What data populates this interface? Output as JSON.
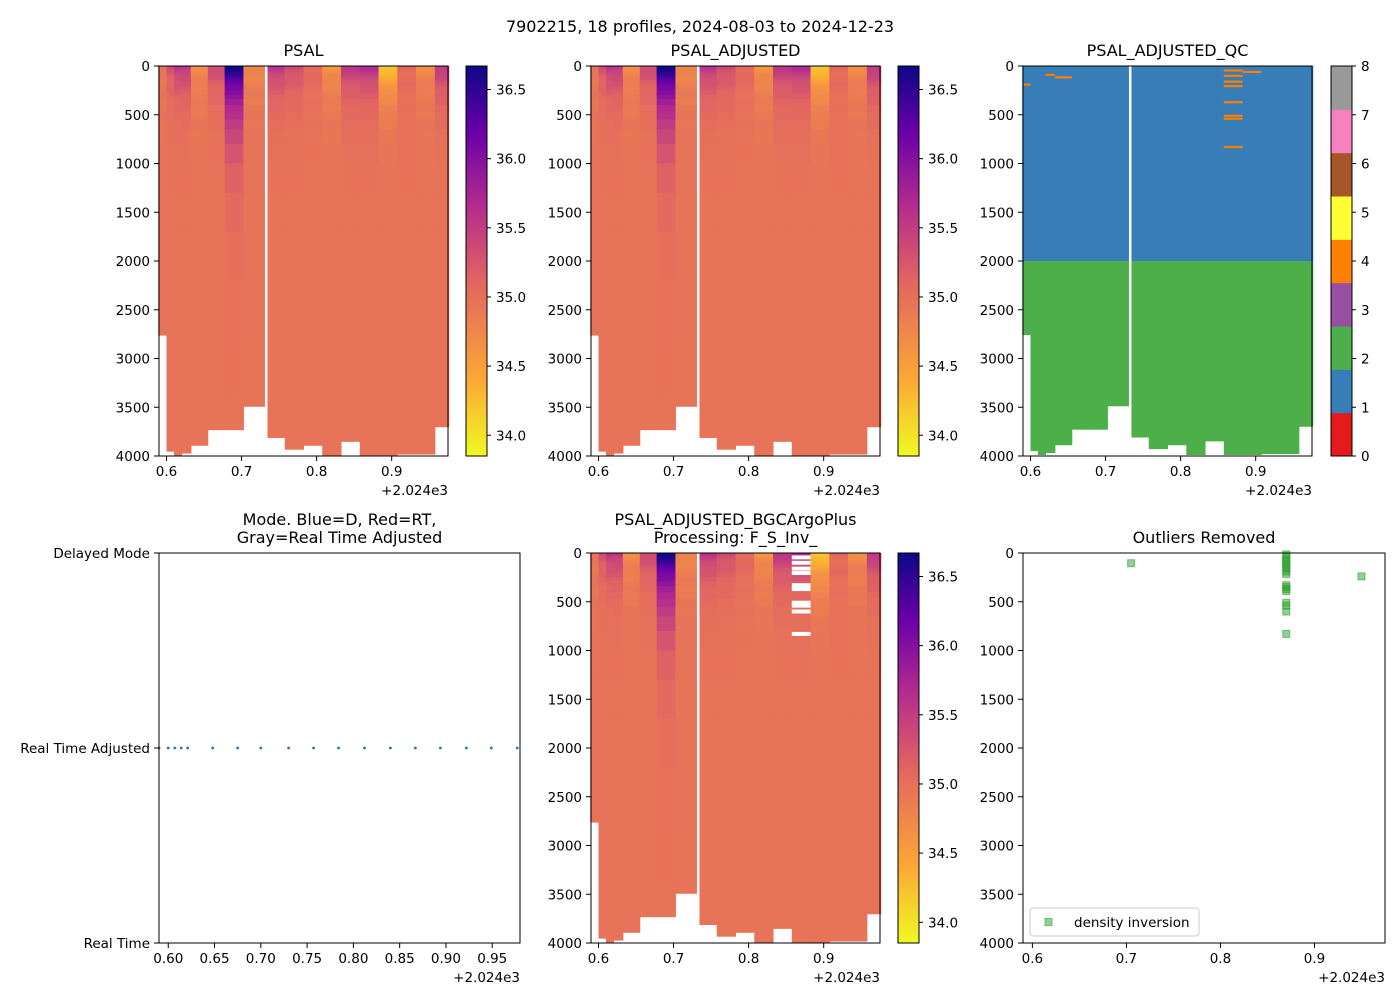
{
  "suptitle": "7902215, 18 profiles, 2024-08-03 to 2024-12-23",
  "colors": {
    "salinity_scale": [
      "#f0f921",
      "#fca636",
      "#e16462",
      "#b12a90",
      "#6a00a8",
      "#0d0887"
    ],
    "qc": [
      "#e41a1c",
      "#377eb8",
      "#4daf4a",
      "#984ea3",
      "#ff7f00",
      "#ffff33",
      "#a65628",
      "#f781bf",
      "#999999"
    ],
    "marker": "#2ca02c",
    "mode_dot": "#1f77b4"
  },
  "chart_data": [
    {
      "id": "psal",
      "type": "heatmap",
      "title": "PSAL",
      "xlim": [
        0.59,
        0.975
      ],
      "x_ticks": [
        "0.6",
        "0.7",
        "0.8",
        "0.9"
      ],
      "x_offset": "+2.024e3",
      "ylim": [
        4000,
        0
      ],
      "y_ticks": [
        "0",
        "500",
        "1000",
        "1500",
        "2000",
        "2500",
        "3000",
        "3500",
        "4000"
      ],
      "colorbar": {
        "range": [
          33.85,
          36.67
        ],
        "ticks": [
          "34.0",
          "34.5",
          "35.0",
          "35.5",
          "36.0",
          "36.5"
        ]
      },
      "profile_times": [
        0.595,
        0.605,
        0.615,
        0.625,
        0.64,
        0.67,
        0.685,
        0.72,
        0.745,
        0.77,
        0.795,
        0.82,
        0.845,
        0.87,
        0.895,
        0.92,
        0.945,
        0.97
      ],
      "profile_max_depths": [
        2760,
        3950,
        3990,
        3970,
        3890,
        3730,
        3730,
        3490,
        3810,
        3930,
        3890,
        3990,
        3850,
        3990,
        3990,
        3980,
        3980,
        3700
      ],
      "surface_salinity": [
        34.9,
        35.3,
        35.6,
        35.6,
        34.7,
        35.4,
        36.7,
        34.7,
        35.6,
        35.4,
        35.1,
        34.6,
        35.6,
        35.7,
        34.1,
        35.1,
        34.7,
        35.6
      ]
    },
    {
      "id": "psal_adj",
      "type": "heatmap",
      "title": "PSAL_ADJUSTED",
      "xlim": [
        0.59,
        0.975
      ],
      "x_ticks": [
        "0.6",
        "0.7",
        "0.8",
        "0.9"
      ],
      "x_offset": "+2.024e3",
      "ylim": [
        4000,
        0
      ],
      "y_ticks": [
        "0",
        "500",
        "1000",
        "1500",
        "2000",
        "2500",
        "3000",
        "3500",
        "4000"
      ],
      "colorbar": {
        "range": [
          33.85,
          36.67
        ],
        "ticks": [
          "34.0",
          "34.5",
          "35.0",
          "35.5",
          "36.0",
          "36.5"
        ]
      }
    },
    {
      "id": "psal_adj_qc",
      "type": "heatmap",
      "title": "PSAL_ADJUSTED_QC",
      "xlim": [
        0.59,
        0.975
      ],
      "x_ticks": [
        "0.6",
        "0.7",
        "0.8",
        "0.9"
      ],
      "x_offset": "+2.024e3",
      "ylim": [
        4000,
        0
      ],
      "y_ticks": [
        "0",
        "500",
        "1000",
        "1500",
        "2000",
        "2500",
        "3000",
        "3500",
        "4000"
      ],
      "qc_split_depth": 2000,
      "qc_above": 1,
      "qc_below": 2,
      "qc_flag4_marks": [
        {
          "time": 0.6,
          "depth": 190
        },
        {
          "time": 0.625,
          "depth": 90
        },
        {
          "time": 0.645,
          "depth": 115
        },
        {
          "time": 0.87,
          "depth": 45
        },
        {
          "time": 0.87,
          "depth": 100
        },
        {
          "time": 0.87,
          "depth": 160
        },
        {
          "time": 0.87,
          "depth": 205
        },
        {
          "time": 0.87,
          "depth": 370
        },
        {
          "time": 0.87,
          "depth": 510
        },
        {
          "time": 0.87,
          "depth": 540
        },
        {
          "time": 0.87,
          "depth": 830
        },
        {
          "time": 0.895,
          "depth": 60
        }
      ],
      "colorbar": {
        "range": [
          0,
          8
        ],
        "ticks": [
          "0",
          "1",
          "2",
          "3",
          "4",
          "5",
          "6",
          "7",
          "8"
        ]
      }
    },
    {
      "id": "mode",
      "type": "scatter",
      "title": "Mode. Blue=D, Red=RT,",
      "title2": "Gray=Real Time Adjusted",
      "xlim": [
        0.59,
        0.98
      ],
      "x_ticks": [
        "0.60",
        "0.65",
        "0.70",
        "0.75",
        "0.80",
        "0.85",
        "0.90",
        "0.95"
      ],
      "x_offset": "+2.024e3",
      "y_categories": [
        "Real Time",
        "Real Time Adjusted",
        "Delayed Mode"
      ],
      "points_x": [
        0.59,
        0.6,
        0.607,
        0.614,
        0.621,
        0.648,
        0.675,
        0.7,
        0.73,
        0.757,
        0.784,
        0.812,
        0.84,
        0.867,
        0.894,
        0.922,
        0.949,
        0.977
      ],
      "points_category": "Real Time Adjusted"
    },
    {
      "id": "bgc",
      "type": "heatmap",
      "title": "PSAL_ADJUSTED_BGCArgoPlus",
      "title2": "Processing: F_S_Inv_",
      "xlim": [
        0.59,
        0.975
      ],
      "x_ticks": [
        "0.6",
        "0.7",
        "0.8",
        "0.9"
      ],
      "x_offset": "+2.024e3",
      "ylim": [
        4000,
        0
      ],
      "y_ticks": [
        "0",
        "500",
        "1000",
        "1500",
        "2000",
        "2500",
        "3000",
        "3500",
        "4000"
      ],
      "colorbar": {
        "range": [
          33.85,
          36.67
        ],
        "ticks": [
          "34.0",
          "34.5",
          "35.0",
          "35.5",
          "36.0",
          "36.5"
        ]
      },
      "removed_depths": [
        45,
        100,
        160,
        205,
        330,
        370,
        510,
        540,
        600,
        830
      ]
    },
    {
      "id": "outliers",
      "type": "scatter",
      "title": "Outliers Removed",
      "xlim": [
        0.59,
        0.975
      ],
      "x_ticks": [
        "0.6",
        "0.7",
        "0.8",
        "0.9"
      ],
      "x_offset": "+2.024e3",
      "ylim": [
        4000,
        0
      ],
      "y_ticks": [
        "0",
        "500",
        "1000",
        "1500",
        "2000",
        "2500",
        "3000",
        "3500",
        "4000"
      ],
      "legend": "density inversion",
      "points": [
        {
          "x": 0.705,
          "y": 105
        },
        {
          "x": 0.95,
          "y": 240
        },
        {
          "x": 0.87,
          "y": 15
        },
        {
          "x": 0.87,
          "y": 40
        },
        {
          "x": 0.87,
          "y": 65
        },
        {
          "x": 0.87,
          "y": 90
        },
        {
          "x": 0.87,
          "y": 115
        },
        {
          "x": 0.87,
          "y": 140
        },
        {
          "x": 0.87,
          "y": 160
        },
        {
          "x": 0.87,
          "y": 190
        },
        {
          "x": 0.87,
          "y": 215
        },
        {
          "x": 0.87,
          "y": 330
        },
        {
          "x": 0.87,
          "y": 350
        },
        {
          "x": 0.87,
          "y": 370
        },
        {
          "x": 0.87,
          "y": 390
        },
        {
          "x": 0.87,
          "y": 510
        },
        {
          "x": 0.87,
          "y": 540
        },
        {
          "x": 0.87,
          "y": 600
        },
        {
          "x": 0.87,
          "y": 830
        }
      ]
    }
  ]
}
